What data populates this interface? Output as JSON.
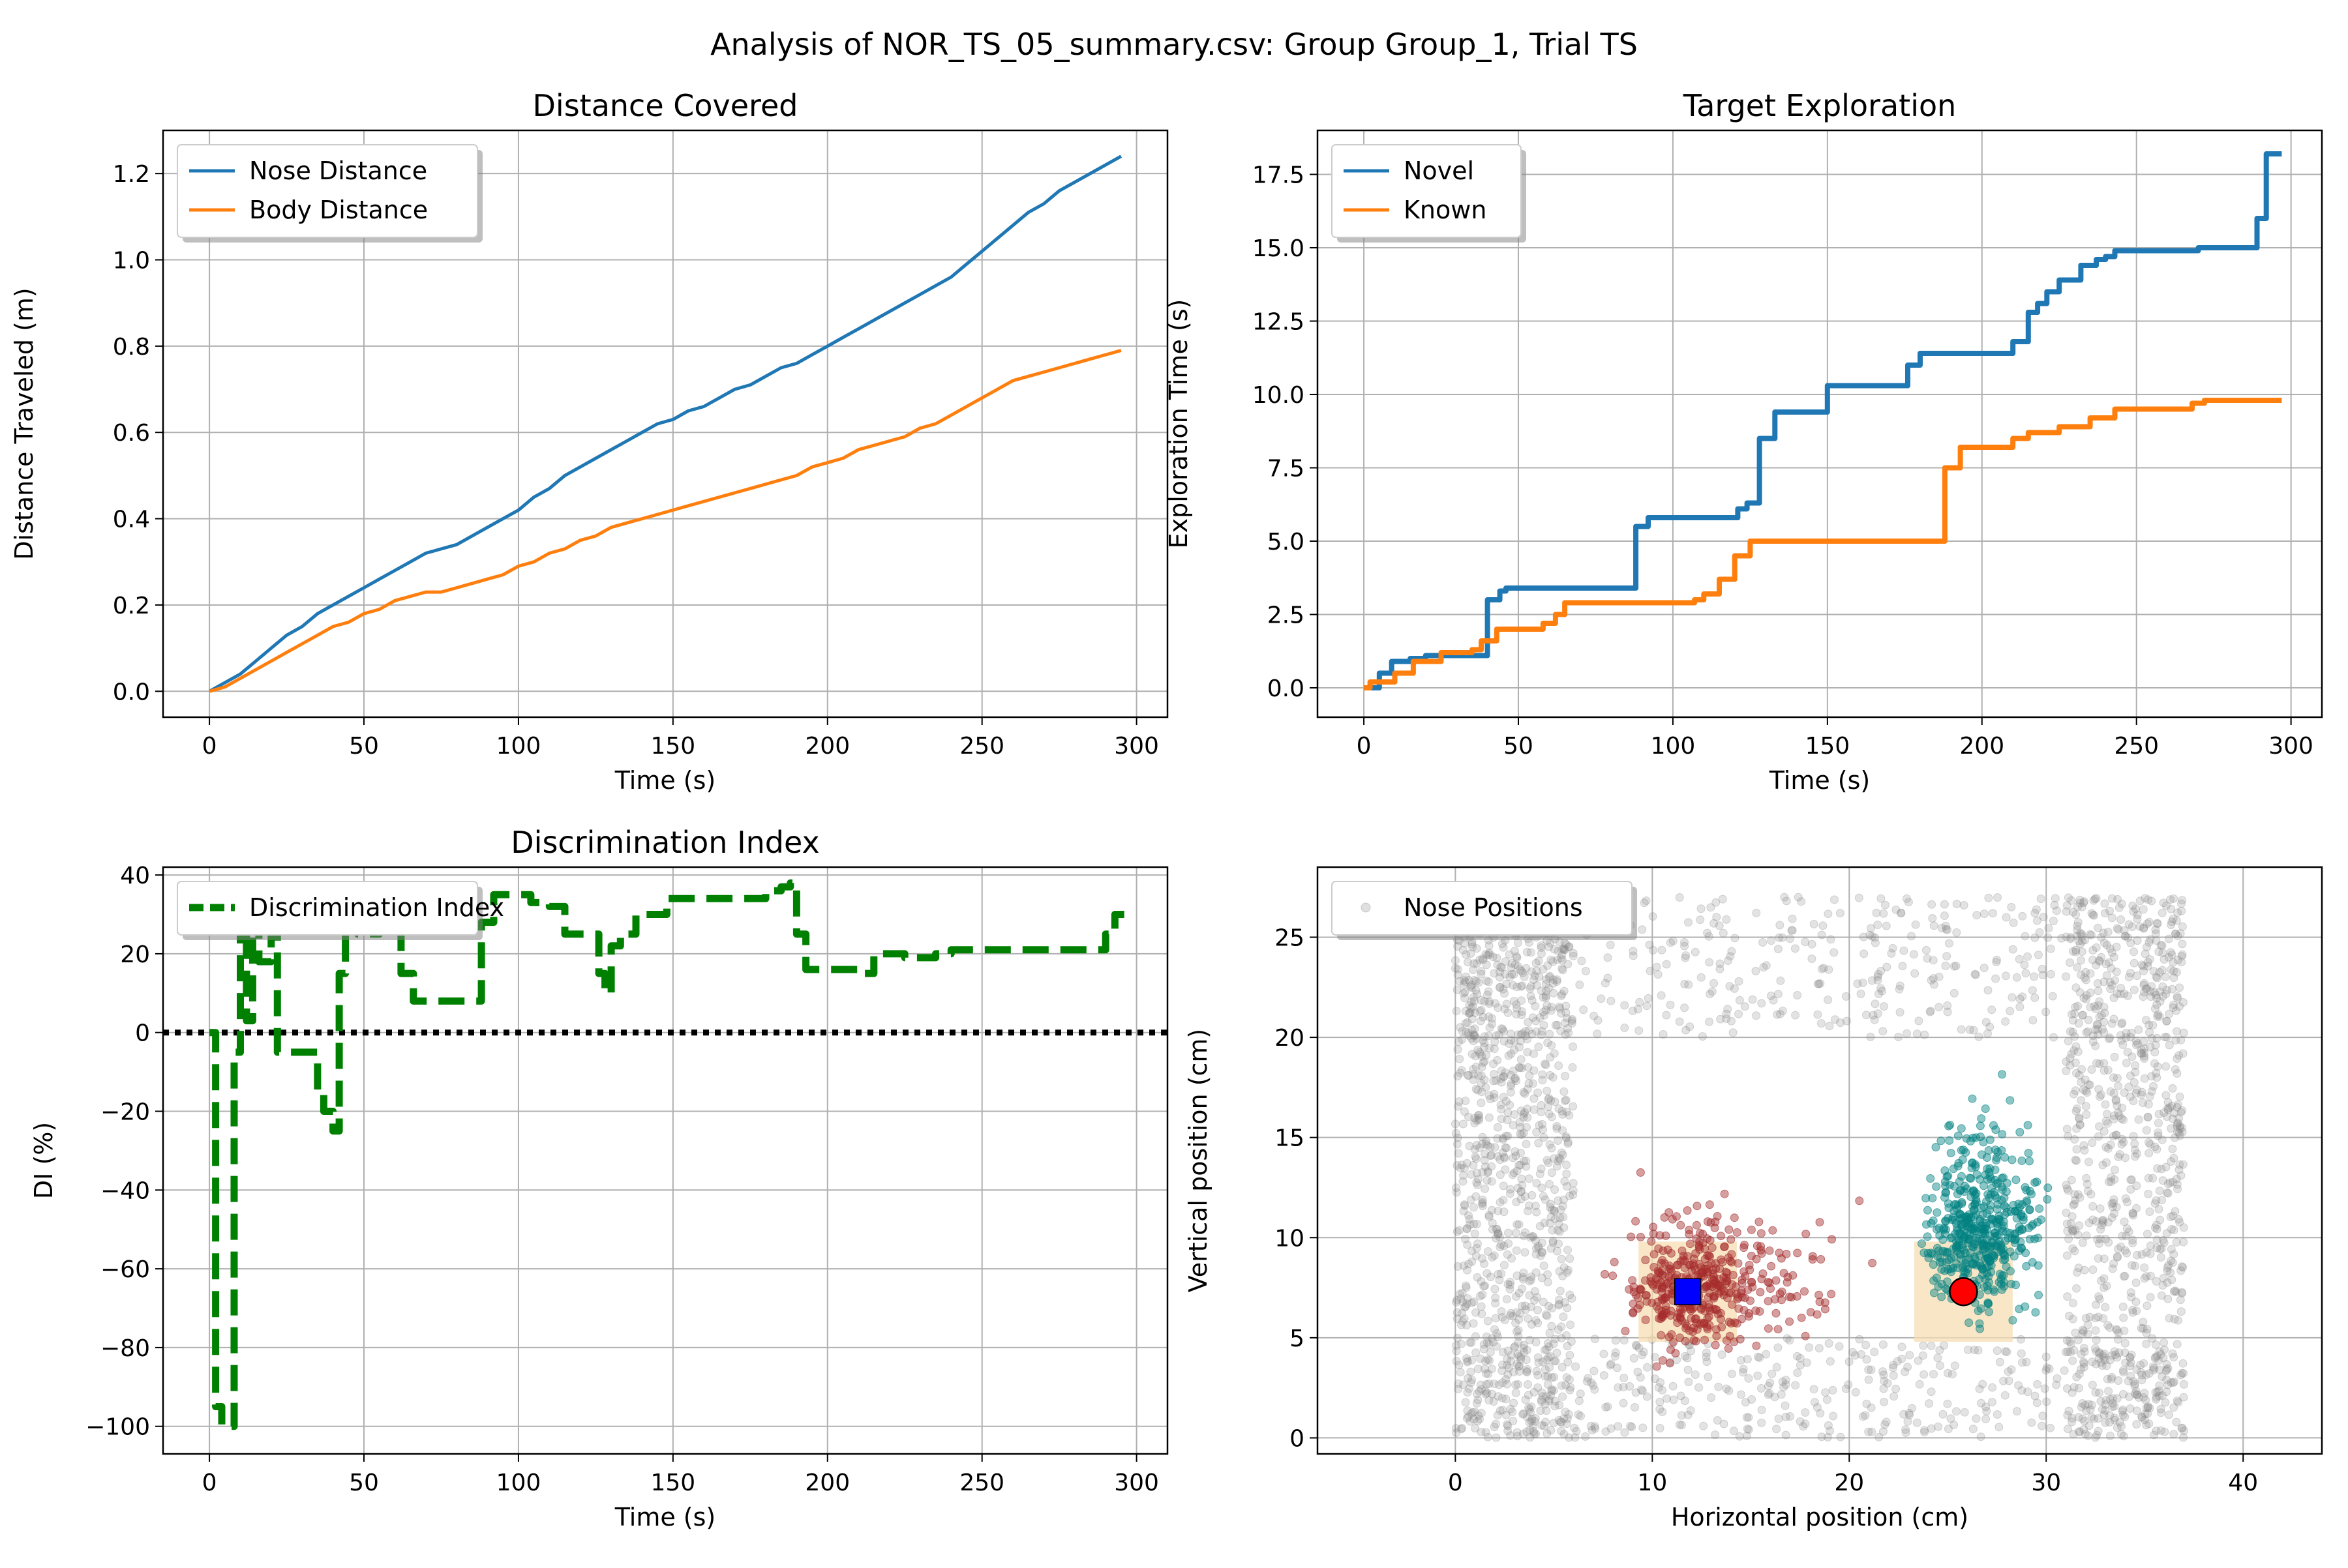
{
  "figure": {
    "suptitle": "Analysis of NOR_TS_05_summary.csv: Group Group_1, Trial TS"
  },
  "chart_data": [
    {
      "id": "distance",
      "type": "line",
      "title": "Distance Covered",
      "xlabel": "Time (s)",
      "ylabel": "Distance Traveled (m)",
      "xlim": [
        -15,
        310
      ],
      "ylim": [
        -0.06,
        1.3
      ],
      "xticks": [
        0,
        50,
        100,
        150,
        200,
        250,
        300
      ],
      "yticks": [
        0.0,
        0.2,
        0.4,
        0.6,
        0.8,
        1.0,
        1.2
      ],
      "ytick_format": 1,
      "grid": true,
      "legend_position": "upper-left",
      "series": [
        {
          "name": "Nose Distance",
          "color": "#1f77b4",
          "x": [
            0,
            5,
            10,
            15,
            20,
            25,
            30,
            35,
            40,
            45,
            50,
            55,
            60,
            65,
            70,
            75,
            80,
            85,
            90,
            95,
            100,
            105,
            110,
            115,
            120,
            125,
            130,
            135,
            140,
            145,
            150,
            155,
            160,
            165,
            170,
            175,
            180,
            185,
            190,
            195,
            200,
            205,
            210,
            215,
            220,
            225,
            230,
            235,
            240,
            245,
            250,
            255,
            260,
            265,
            270,
            275,
            280,
            285,
            290,
            295
          ],
          "y": [
            0.0,
            0.02,
            0.04,
            0.07,
            0.1,
            0.13,
            0.15,
            0.18,
            0.2,
            0.22,
            0.24,
            0.26,
            0.28,
            0.3,
            0.32,
            0.33,
            0.34,
            0.36,
            0.38,
            0.4,
            0.42,
            0.45,
            0.47,
            0.5,
            0.52,
            0.54,
            0.56,
            0.58,
            0.6,
            0.62,
            0.63,
            0.65,
            0.66,
            0.68,
            0.7,
            0.71,
            0.73,
            0.75,
            0.76,
            0.78,
            0.8,
            0.82,
            0.84,
            0.86,
            0.88,
            0.9,
            0.92,
            0.94,
            0.96,
            0.99,
            1.02,
            1.05,
            1.08,
            1.11,
            1.13,
            1.16,
            1.18,
            1.2,
            1.22,
            1.24
          ]
        },
        {
          "name": "Body Distance",
          "color": "#ff7f0e",
          "x": [
            0,
            5,
            10,
            15,
            20,
            25,
            30,
            35,
            40,
            45,
            50,
            55,
            60,
            65,
            70,
            75,
            80,
            85,
            90,
            95,
            100,
            105,
            110,
            115,
            120,
            125,
            130,
            135,
            140,
            145,
            150,
            155,
            160,
            165,
            170,
            175,
            180,
            185,
            190,
            195,
            200,
            205,
            210,
            215,
            220,
            225,
            230,
            235,
            240,
            245,
            250,
            255,
            260,
            265,
            270,
            275,
            280,
            285,
            290,
            295
          ],
          "y": [
            0.0,
            0.01,
            0.03,
            0.05,
            0.07,
            0.09,
            0.11,
            0.13,
            0.15,
            0.16,
            0.18,
            0.19,
            0.21,
            0.22,
            0.23,
            0.23,
            0.24,
            0.25,
            0.26,
            0.27,
            0.29,
            0.3,
            0.32,
            0.33,
            0.35,
            0.36,
            0.38,
            0.39,
            0.4,
            0.41,
            0.42,
            0.43,
            0.44,
            0.45,
            0.46,
            0.47,
            0.48,
            0.49,
            0.5,
            0.52,
            0.53,
            0.54,
            0.56,
            0.57,
            0.58,
            0.59,
            0.61,
            0.62,
            0.64,
            0.66,
            0.68,
            0.7,
            0.72,
            0.73,
            0.74,
            0.75,
            0.76,
            0.77,
            0.78,
            0.79
          ]
        }
      ]
    },
    {
      "id": "exploration",
      "type": "line",
      "title": "Target Exploration",
      "xlabel": "Time (s)",
      "ylabel": "Exploration Time (s)",
      "xlim": [
        -15,
        310
      ],
      "ylim": [
        -1,
        19
      ],
      "xticks": [
        0,
        50,
        100,
        150,
        200,
        250,
        300
      ],
      "yticks": [
        0.0,
        2.5,
        5.0,
        7.5,
        10.0,
        12.5,
        15.0,
        17.5
      ],
      "ytick_format": 1,
      "grid": true,
      "legend_position": "upper-left",
      "series": [
        {
          "name": "Novel",
          "color": "#1f77b4",
          "x": [
            0,
            5,
            5,
            9,
            9,
            15,
            15,
            20,
            20,
            40,
            40,
            44,
            44,
            46,
            46,
            88,
            88,
            92,
            92,
            121,
            121,
            124,
            124,
            128,
            128,
            133,
            133,
            150,
            150,
            176,
            176,
            180,
            180,
            210,
            210,
            215,
            215,
            218,
            218,
            221,
            221,
            225,
            225,
            232,
            232,
            237,
            237,
            240,
            240,
            243,
            243,
            270,
            270,
            289,
            289,
            292,
            292,
            297
          ],
          "y": [
            0,
            0,
            0.5,
            0.5,
            0.9,
            0.9,
            1.0,
            1.0,
            1.1,
            1.1,
            3.0,
            3.0,
            3.3,
            3.3,
            3.4,
            3.4,
            5.5,
            5.5,
            5.8,
            5.8,
            6.1,
            6.1,
            6.3,
            6.3,
            8.5,
            8.5,
            9.4,
            9.4,
            10.3,
            10.3,
            11.0,
            11.0,
            11.4,
            11.4,
            11.8,
            11.8,
            12.8,
            12.8,
            13.1,
            13.1,
            13.5,
            13.5,
            13.9,
            13.9,
            14.4,
            14.4,
            14.6,
            14.6,
            14.7,
            14.7,
            14.9,
            14.9,
            15.0,
            15.0,
            16.0,
            16.0,
            18.2,
            18.2
          ]
        },
        {
          "name": "Known",
          "color": "#ff7f0e",
          "x": [
            0,
            2,
            2,
            10,
            10,
            16,
            16,
            25,
            25,
            35,
            35,
            38,
            38,
            43,
            43,
            58,
            58,
            62,
            62,
            65,
            65,
            107,
            107,
            110,
            110,
            115,
            115,
            120,
            120,
            125,
            125,
            188,
            188,
            193,
            193,
            210,
            210,
            215,
            215,
            225,
            225,
            235,
            235,
            243,
            243,
            268,
            268,
            272,
            272,
            297
          ],
          "y": [
            0,
            0,
            0.2,
            0.2,
            0.5,
            0.5,
            0.9,
            0.9,
            1.2,
            1.2,
            1.3,
            1.3,
            1.6,
            1.6,
            2.0,
            2.0,
            2.2,
            2.2,
            2.5,
            2.5,
            2.9,
            2.9,
            3.0,
            3.0,
            3.2,
            3.2,
            3.7,
            3.7,
            4.5,
            4.5,
            5.0,
            5.0,
            7.5,
            7.5,
            8.2,
            8.2,
            8.5,
            8.5,
            8.7,
            8.7,
            8.9,
            8.9,
            9.2,
            9.2,
            9.5,
            9.5,
            9.7,
            9.7,
            9.8,
            9.8
          ]
        }
      ]
    },
    {
      "id": "di",
      "type": "line",
      "title": "Discrimination Index",
      "xlabel": "Time (s)",
      "ylabel": "DI (%)",
      "xlim": [
        -15,
        310
      ],
      "ylim": [
        -107,
        42
      ],
      "xticks": [
        0,
        50,
        100,
        150,
        200,
        250,
        300
      ],
      "yticks": [
        -100,
        -80,
        -60,
        -40,
        -20,
        0,
        20,
        40
      ],
      "ytick_format": 0,
      "grid": true,
      "legend_position": "upper-left",
      "reference_line": {
        "y": 0,
        "color": "#000000"
      },
      "series": [
        {
          "name": "Discrimination Index",
          "color": "#008000",
          "x": [
            0,
            2,
            2,
            4,
            4,
            8,
            8,
            10,
            10,
            12,
            12,
            14,
            14,
            16,
            16,
            20,
            20,
            22,
            22,
            25,
            25,
            30,
            30,
            35,
            35,
            37,
            37,
            40,
            40,
            42,
            42,
            44,
            44,
            48,
            48,
            55,
            55,
            62,
            62,
            66,
            66,
            75,
            75,
            88,
            88,
            92,
            92,
            104,
            104,
            110,
            110,
            115,
            115,
            120,
            120,
            126,
            126,
            128,
            128,
            130,
            130,
            133,
            133,
            138,
            138,
            142,
            142,
            148,
            148,
            165,
            165,
            175,
            175,
            180,
            180,
            185,
            185,
            188,
            188,
            190,
            190,
            193,
            193,
            198,
            198,
            210,
            210,
            215,
            215,
            225,
            225,
            235,
            235,
            240,
            240,
            250,
            250,
            270,
            270,
            283,
            283,
            290,
            290,
            293,
            293,
            296
          ],
          "y": [
            0,
            0,
            -95,
            -95,
            -100,
            -100,
            -5,
            -5,
            28,
            28,
            3,
            3,
            28,
            28,
            18,
            18,
            25,
            25,
            -5,
            -5,
            -5,
            -5,
            -5,
            -5,
            -15,
            -15,
            -20,
            -20,
            -25,
            -25,
            15,
            15,
            28,
            28,
            25,
            25,
            27,
            27,
            15,
            15,
            8,
            8,
            8,
            8,
            28,
            28,
            35,
            35,
            33,
            33,
            32,
            32,
            25,
            25,
            25,
            25,
            15,
            15,
            10,
            10,
            22,
            22,
            25,
            25,
            30,
            30,
            30,
            30,
            34,
            34,
            34,
            34,
            34,
            34,
            36,
            36,
            37,
            37,
            38,
            38,
            25,
            25,
            16,
            16,
            16,
            16,
            15,
            15,
            20,
            20,
            19,
            19,
            20,
            20,
            21,
            21,
            21,
            21,
            21,
            21,
            21,
            21,
            25,
            25,
            30,
            30
          ]
        }
      ]
    },
    {
      "id": "positions",
      "type": "scatter",
      "xlabel": "Horizontal position (cm)",
      "ylabel": "Vertical position (cm)",
      "xlim": [
        -7,
        44
      ],
      "ylim": [
        -0.8,
        28.5
      ],
      "xticks": [
        0,
        10,
        20,
        30,
        40
      ],
      "yticks": [
        0,
        5,
        10,
        15,
        20,
        25
      ],
      "ytick_format": 0,
      "grid": true,
      "legend_position": "upper-left",
      "legend_label": "Nose Positions",
      "arena": {
        "xmin": 0,
        "xmax": 37,
        "ymin": 0,
        "ymax": 27
      },
      "known_object": {
        "x": 11.8,
        "y": 7.3,
        "marker": "square",
        "color": "#0000ff",
        "zone_color": "#f5deb3"
      },
      "novel_object": {
        "x": 25.8,
        "y": 7.3,
        "marker": "circle",
        "color": "#ff0000",
        "zone_color": "#f5deb3"
      },
      "near_known_color": "#a52a2a",
      "near_novel_color": "#008080",
      "background_color": "#808080"
    }
  ]
}
